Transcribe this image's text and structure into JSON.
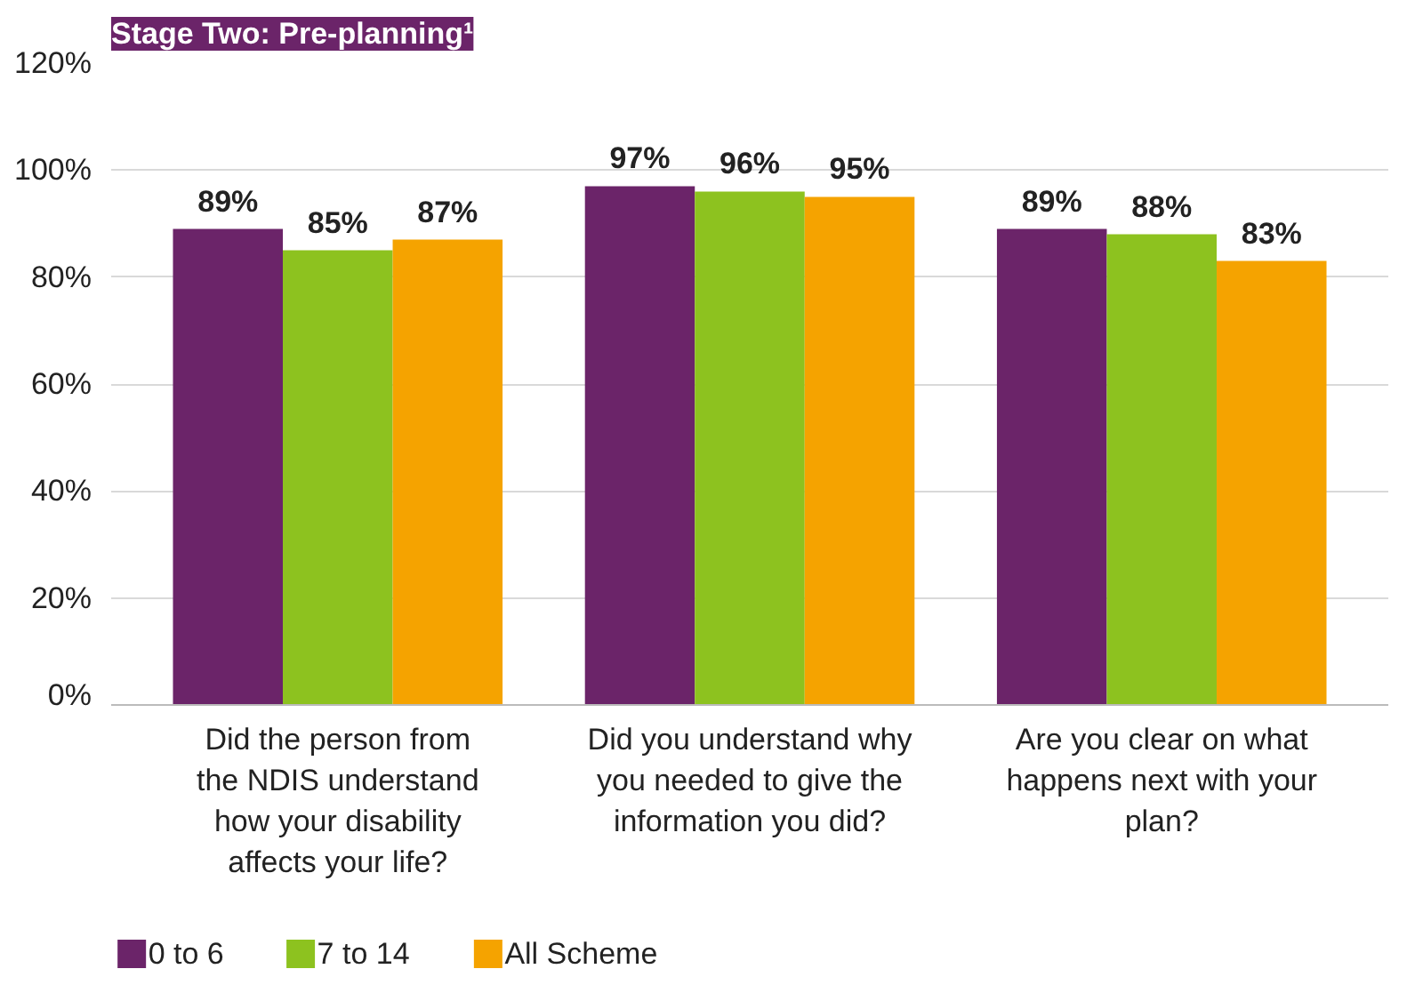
{
  "chart_data": {
    "type": "bar",
    "title": "Stage Two: Pre-planning¹",
    "categories": [
      "Did the person from the NDIS understand how your disability affects your life?",
      "Did you understand why you needed to give the information you did?",
      "Are you clear on what happens next with your plan?"
    ],
    "series": [
      {
        "name": "0 to 6",
        "color": "#6b2469",
        "values": [
          89,
          97,
          89
        ],
        "value_labels": [
          "89%",
          "97%",
          "89%"
        ]
      },
      {
        "name": "7 to 14",
        "color": "#8dc21f",
        "values": [
          85,
          96,
          88
        ],
        "value_labels": [
          "85%",
          "96%",
          "88%"
        ]
      },
      {
        "name": "All Scheme",
        "color": "#f5a300",
        "values": [
          87,
          95,
          83
        ],
        "value_labels": [
          "87%",
          "95%",
          "83%"
        ]
      }
    ],
    "ylim": [
      0,
      120
    ],
    "yticks": [
      {
        "value": 0,
        "label": "0%"
      },
      {
        "value": 20,
        "label": "20%"
      },
      {
        "value": 40,
        "label": "40%"
      },
      {
        "value": 60,
        "label": "60%"
      },
      {
        "value": 80,
        "label": "80%"
      },
      {
        "value": 100,
        "label": "100%"
      },
      {
        "value": 120,
        "label": "120%"
      }
    ],
    "grid": "y",
    "legend": "bottom"
  }
}
